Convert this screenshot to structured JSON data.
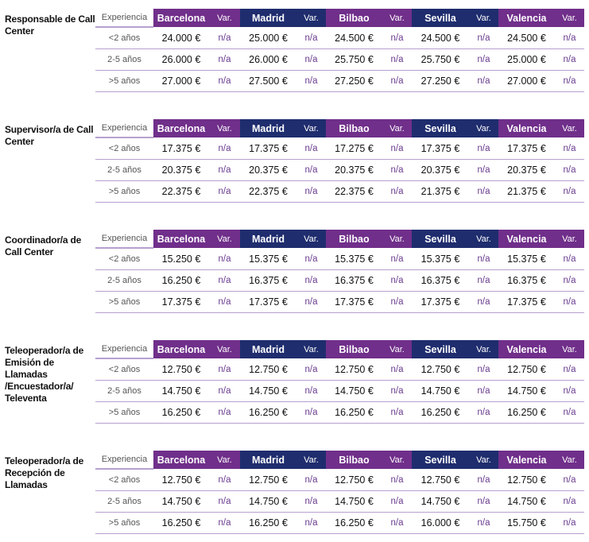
{
  "header": {
    "experience_label": "Experiencia",
    "var_label": "Var.",
    "cities": [
      "Barcelona",
      "Madrid",
      "Bilbao",
      "Sevilla",
      "Valencia"
    ]
  },
  "colors": {
    "purple": "#702f8a",
    "navy": "#1f2d6e",
    "row_line": "#b79fcf"
  },
  "tables": [
    {
      "role": "Responsable de Call Center",
      "rows": [
        {
          "exp": "<2 años",
          "values": [
            "24.000 €",
            "25.000 €",
            "24.500 €",
            "24.500 €",
            "24.500 €"
          ],
          "vars": [
            "n/a",
            "n/a",
            "n/a",
            "n/a",
            "n/a"
          ]
        },
        {
          "exp": "2-5 años",
          "values": [
            "26.000 €",
            "26.000 €",
            "25.750 €",
            "25.750 €",
            "25.000 €"
          ],
          "vars": [
            "n/a",
            "n/a",
            "n/a",
            "n/a",
            "n/a"
          ]
        },
        {
          "exp": ">5 años",
          "values": [
            "27.000 €",
            "27.500 €",
            "27.250 €",
            "27.250 €",
            "27.000 €"
          ],
          "vars": [
            "n/a",
            "n/a",
            "n/a",
            "n/a",
            "n/a"
          ]
        }
      ]
    },
    {
      "role": "Supervisor/a de Call Center",
      "rows": [
        {
          "exp": "<2 años",
          "values": [
            "17.375 €",
            "17.375 €",
            "17.275 €",
            "17.375 €",
            "17.375 €"
          ],
          "vars": [
            "n/a",
            "n/a",
            "n/a",
            "n/a",
            "n/a"
          ]
        },
        {
          "exp": "2-5 años",
          "values": [
            "20.375 €",
            "20.375 €",
            "20.375 €",
            "20.375 €",
            "20.375 €"
          ],
          "vars": [
            "n/a",
            "n/a",
            "n/a",
            "n/a",
            "n/a"
          ]
        },
        {
          "exp": ">5 años",
          "values": [
            "22.375 €",
            "22.375 €",
            "22.375 €",
            "21.375 €",
            "21.375 €"
          ],
          "vars": [
            "n/a",
            "n/a",
            "n/a",
            "n/a",
            "n/a"
          ]
        }
      ]
    },
    {
      "role": "Coordinador/a de Call Center",
      "rows": [
        {
          "exp": "<2 años",
          "values": [
            "15.250 €",
            "15.375 €",
            "15.375 €",
            "15.375 €",
            "15.375 €"
          ],
          "vars": [
            "n/a",
            "n/a",
            "n/a",
            "n/a",
            "n/a"
          ]
        },
        {
          "exp": "2-5 años",
          "values": [
            "16.250 €",
            "16.375 €",
            "16.375 €",
            "16.375 €",
            "16.375 €"
          ],
          "vars": [
            "n/a",
            "n/a",
            "n/a",
            "n/a",
            "n/a"
          ]
        },
        {
          "exp": ">5 años",
          "values": [
            "17.375 €",
            "17.375 €",
            "17.375 €",
            "17.375 €",
            "17.375 €"
          ],
          "vars": [
            "n/a",
            "n/a",
            "n/a",
            "n/a",
            "n/a"
          ]
        }
      ]
    },
    {
      "role": "Teleoperador/a de Emisión de Llamadas /Encuestador/a/ Televenta",
      "rows": [
        {
          "exp": "<2 años",
          "values": [
            "12.750 €",
            "12.750 €",
            "12.750 €",
            "12.750 €",
            "12.750 €"
          ],
          "vars": [
            "n/a",
            "n/a",
            "n/a",
            "n/a",
            "n/a"
          ]
        },
        {
          "exp": "2-5 años",
          "values": [
            "14.750 €",
            "14.750 €",
            "14.750 €",
            "14.750 €",
            "14.750 €"
          ],
          "vars": [
            "n/a",
            "n/a",
            "n/a",
            "n/a",
            "n/a"
          ]
        },
        {
          "exp": ">5 años",
          "values": [
            "16.250 €",
            "16.250 €",
            "16.250 €",
            "16.250 €",
            "16.250 €"
          ],
          "vars": [
            "n/a",
            "n/a",
            "n/a",
            "n/a",
            "n/a"
          ]
        }
      ]
    },
    {
      "role": "Teleoperador/a de Recepción de Llamadas",
      "rows": [
        {
          "exp": "<2 años",
          "values": [
            "12.750 €",
            "12.750 €",
            "12.750 €",
            "12.750 €",
            "12.750 €"
          ],
          "vars": [
            "n/a",
            "n/a",
            "n/a",
            "n/a",
            "n/a"
          ]
        },
        {
          "exp": "2-5 años",
          "values": [
            "14.750 €",
            "14.750 €",
            "14.750 €",
            "14.750 €",
            "14.750 €"
          ],
          "vars": [
            "n/a",
            "n/a",
            "n/a",
            "n/a",
            "n/a"
          ]
        },
        {
          "exp": ">5 años",
          "values": [
            "16.250 €",
            "16.250 €",
            "16.250 €",
            "16.000 €",
            "15.750 €"
          ],
          "vars": [
            "n/a",
            "n/a",
            "n/a",
            "n/a",
            "n/a"
          ]
        }
      ]
    }
  ]
}
